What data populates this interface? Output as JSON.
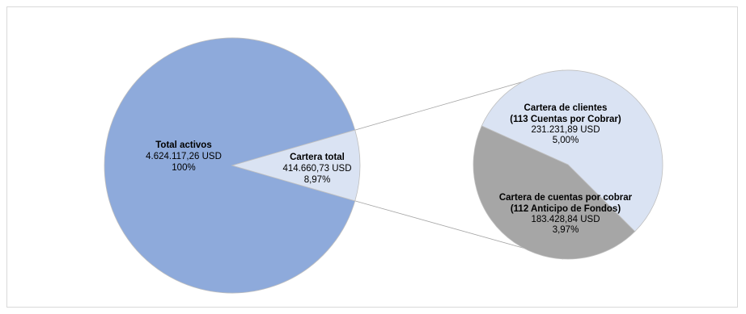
{
  "chart_data": [
    {
      "type": "pie",
      "series": [
        {
          "slices": [
            {
              "key": "total",
              "value": 4624117.26,
              "percent": "100%",
              "label_title": "Total activos",
              "label_value": "4.624.117,26 USD",
              "label_percent": "100%",
              "color": "#8eaadb"
            },
            {
              "key": "cartera",
              "value": 414660.73,
              "percent": "8,97%",
              "label_title": "Cartera total",
              "label_value": "414.660,73 USD",
              "label_percent": "8,97%",
              "color": "#dae3f3"
            }
          ]
        }
      ]
    },
    {
      "type": "pie",
      "series": [
        {
          "slices": [
            {
              "key": "clientes",
              "value": 231231.89,
              "percent": "5,00%",
              "label_title_1": "Cartera de clientes",
              "label_title_2": "(113 Cuentas por Cobrar)",
              "label_value": "231.231,89 USD",
              "label_percent": "5,00%",
              "color": "#dae3f3"
            },
            {
              "key": "cuentas",
              "value": 183428.84,
              "percent": "3,97%",
              "label_title_1": "Cartera de cuentas por cobrar",
              "label_title_2": "(112 Anticipo de Fondos)",
              "label_value": "183.428,84 USD",
              "label_percent": "3,97%",
              "color": "#a6a6a6"
            }
          ]
        }
      ]
    }
  ],
  "colors": {
    "outline": "#bfbfbf",
    "connector": "#a6a6a6"
  }
}
